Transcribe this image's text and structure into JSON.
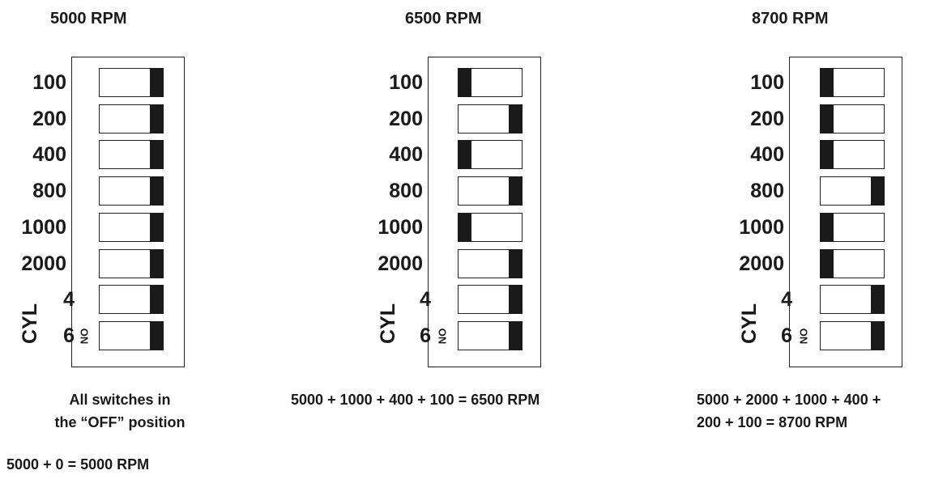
{
  "panels": [
    {
      "title": "5000 RPM",
      "cyl_label": "CYL",
      "on_label": "ON",
      "rows": [
        {
          "label": "100",
          "state": "off"
        },
        {
          "label": "200",
          "state": "off"
        },
        {
          "label": "400",
          "state": "off"
        },
        {
          "label": "800",
          "state": "off"
        },
        {
          "label": "1000",
          "state": "off"
        },
        {
          "label": "2000",
          "state": "off"
        },
        {
          "label": "4",
          "state": "off"
        },
        {
          "label": "6",
          "state": "off"
        }
      ],
      "caption_line1": "All switches in",
      "caption_line2": "the “OFF” position",
      "caption_line3": "5000 + 0 = 5000 RPM"
    },
    {
      "title": "6500 RPM",
      "cyl_label": "CYL",
      "on_label": "ON",
      "rows": [
        {
          "label": "100",
          "state": "on"
        },
        {
          "label": "200",
          "state": "off"
        },
        {
          "label": "400",
          "state": "on"
        },
        {
          "label": "800",
          "state": "off"
        },
        {
          "label": "1000",
          "state": "on"
        },
        {
          "label": "2000",
          "state": "off"
        },
        {
          "label": "4",
          "state": "off"
        },
        {
          "label": "6",
          "state": "off"
        }
      ],
      "caption_line1": "5000 + 1000 + 400 + 100 = 6500 RPM"
    },
    {
      "title": "8700 RPM",
      "cyl_label": "CYL",
      "on_label": "ON",
      "rows": [
        {
          "label": "100",
          "state": "on"
        },
        {
          "label": "200",
          "state": "on"
        },
        {
          "label": "400",
          "state": "on"
        },
        {
          "label": "800",
          "state": "off"
        },
        {
          "label": "1000",
          "state": "on"
        },
        {
          "label": "2000",
          "state": "on"
        },
        {
          "label": "4",
          "state": "off"
        },
        {
          "label": "6",
          "state": "off"
        }
      ],
      "caption_line1": "5000 + 2000 + 1000 + 400 +",
      "caption_line2": "200 + 100 = 8700 RPM"
    }
  ]
}
